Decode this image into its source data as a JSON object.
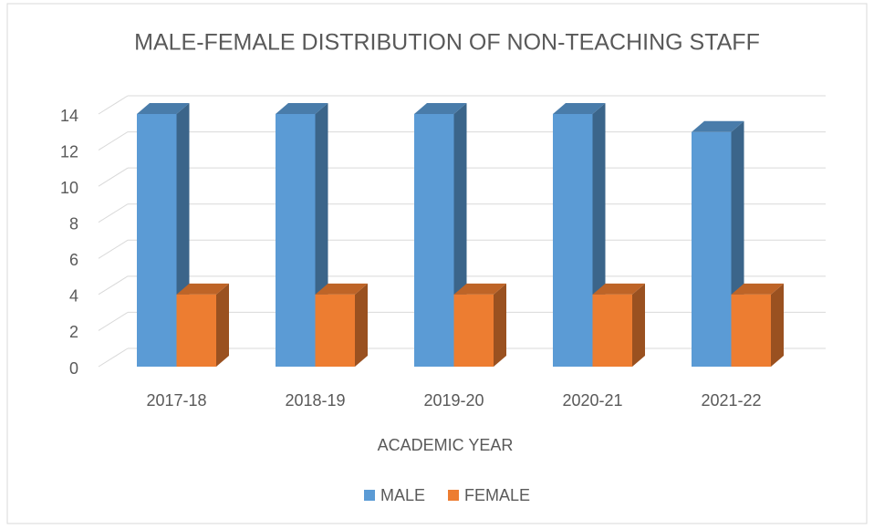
{
  "chart_data": {
    "type": "bar",
    "title": "MALE-FEMALE DISTRIBUTION OF NON-TEACHING STAFF",
    "x_label": "ACADEMIC YEAR",
    "categories": [
      "2017-18",
      "2018-19",
      "2019-20",
      "2020-21",
      "2021-22"
    ],
    "series": [
      {
        "name": "MALE",
        "color": "#5b9bd5",
        "values": [
          14,
          14,
          14,
          14,
          13
        ]
      },
      {
        "name": "FEMALE",
        "color": "#ed7d31",
        "values": [
          4,
          4,
          4,
          4,
          4
        ]
      }
    ],
    "ylim": [
      0,
      14
    ],
    "yticks": [
      0,
      2,
      4,
      6,
      8,
      10,
      12,
      14
    ],
    "grid": true
  }
}
